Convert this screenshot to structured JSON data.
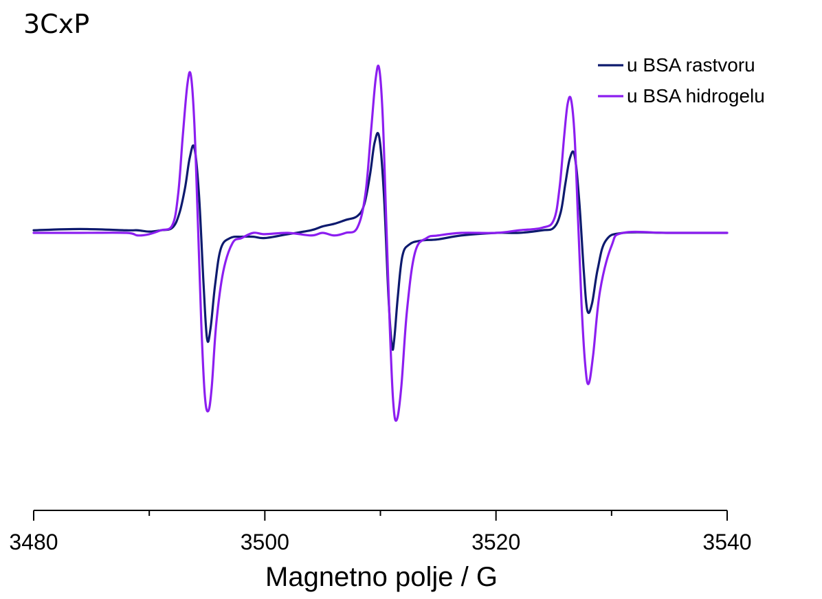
{
  "chart_data": {
    "type": "line",
    "title": "3CxP",
    "xlabel": "Magnetno polje / G",
    "ylabel": "",
    "xlim": [
      3480,
      3540
    ],
    "ylim": [
      -1.5,
      1.2
    ],
    "y_axis_shown": false,
    "grid": false,
    "legend_position": "top-right",
    "x_ticks": [
      3480,
      3500,
      3520,
      3540
    ],
    "x_tick_labels": [
      "3480",
      "3500",
      "3520",
      "3540"
    ],
    "x_minor_ticks": [
      3490,
      3510,
      3530
    ],
    "series": [
      {
        "name": "u BSA rastvoru",
        "color": "#0d1a6e",
        "x": [
          3480,
          3484,
          3488,
          3489,
          3490,
          3491,
          3492,
          3492.6,
          3493.1,
          3493.5,
          3493.9,
          3494.3,
          3494.7,
          3495.0,
          3495.3,
          3495.7,
          3496.2,
          3497,
          3498,
          3499,
          3500,
          3502,
          3504,
          3505,
          3506,
          3507,
          3508,
          3508.6,
          3509.1,
          3509.5,
          3509.9,
          3510.3,
          3510.7,
          3511.0,
          3511.2,
          3511.5,
          3511.9,
          3512.5,
          3513.5,
          3515,
          3517,
          3520,
          3522,
          3524,
          3525,
          3525.6,
          3526.0,
          3526.4,
          3526.8,
          3527.2,
          3527.6,
          3527.9,
          3528.3,
          3528.8,
          3529.5,
          3531,
          3535,
          3540
        ],
        "values": [
          0.02,
          0.03,
          0.02,
          0.02,
          0.01,
          0.02,
          0.04,
          0.15,
          0.35,
          0.58,
          0.66,
          0.3,
          -0.4,
          -0.82,
          -0.74,
          -0.4,
          -0.12,
          -0.04,
          -0.03,
          -0.03,
          -0.04,
          -0.01,
          0.02,
          0.05,
          0.07,
          0.1,
          0.13,
          0.22,
          0.45,
          0.7,
          0.74,
          0.3,
          -0.5,
          -0.88,
          -0.82,
          -0.5,
          -0.18,
          -0.09,
          -0.06,
          -0.05,
          -0.02,
          0.0,
          0.0,
          0.02,
          0.04,
          0.16,
          0.38,
          0.58,
          0.6,
          0.25,
          -0.3,
          -0.6,
          -0.55,
          -0.28,
          -0.06,
          0.0,
          0.0,
          0.0
        ]
      },
      {
        "name": "u BSA hidrogelu",
        "color": "#8c1ef0",
        "x": [
          3480,
          3484,
          3488,
          3489,
          3490,
          3491,
          3492,
          3492.5,
          3492.9,
          3493.3,
          3493.6,
          3493.9,
          3494.2,
          3494.5,
          3494.8,
          3495.1,
          3495.4,
          3495.8,
          3496.4,
          3497.2,
          3498,
          3499,
          3500,
          3502,
          3504,
          3505,
          3506,
          3507,
          3508,
          3508.7,
          3509.2,
          3509.6,
          3509.9,
          3510.2,
          3510.5,
          3510.8,
          3511.1,
          3511.4,
          3511.8,
          3512.3,
          3513,
          3514,
          3515,
          3517,
          3520,
          3522,
          3524,
          3525,
          3525.5,
          3525.9,
          3526.2,
          3526.5,
          3526.8,
          3527.1,
          3527.4,
          3527.7,
          3528.0,
          3528.4,
          3529,
          3530,
          3531,
          3535,
          3540
        ],
        "values": [
          0.0,
          0.0,
          0.0,
          -0.02,
          -0.01,
          0.02,
          0.06,
          0.3,
          0.75,
          1.15,
          1.22,
          0.85,
          0.1,
          -0.7,
          -1.25,
          -1.38,
          -1.2,
          -0.7,
          -0.3,
          -0.08,
          -0.04,
          0.0,
          -0.01,
          0.0,
          -0.02,
          0.0,
          -0.02,
          0.0,
          0.04,
          0.3,
          0.8,
          1.2,
          1.27,
          0.9,
          0.1,
          -0.7,
          -1.3,
          -1.45,
          -1.2,
          -0.6,
          -0.15,
          -0.04,
          -0.02,
          0.0,
          0.0,
          0.02,
          0.04,
          0.1,
          0.35,
          0.75,
          1.0,
          1.03,
          0.75,
          0.1,
          -0.55,
          -1.0,
          -1.17,
          -0.95,
          -0.45,
          -0.1,
          0.0,
          0.0,
          0.0
        ]
      }
    ]
  }
}
